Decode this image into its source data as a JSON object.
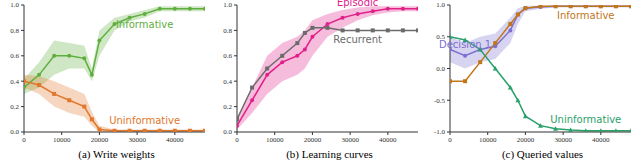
{
  "chart_data": [
    {
      "type": "line",
      "title": "(a) Write weights",
      "grid": false,
      "x": [
        0,
        4000,
        8000,
        12000,
        16000,
        18000,
        20000,
        24000,
        28000,
        32000,
        36000,
        40000,
        44000,
        48000
      ],
      "xlim": [
        0,
        48000
      ],
      "xticks": [
        0,
        10000,
        20000,
        30000,
        40000
      ],
      "ylim": [
        0,
        1
      ],
      "yticks": [
        {
          "value": 0,
          "label": "0.0"
        },
        0.2,
        0.4,
        0.6,
        0.8,
        {
          "value": 1,
          "label": "1.0"
        }
      ],
      "series": [
        {
          "name": "Informative",
          "color": "#5fae3e",
          "marker": "circle",
          "values": [
            0.35,
            0.45,
            0.6,
            0.6,
            0.58,
            0.45,
            0.72,
            0.85,
            0.9,
            0.93,
            0.97,
            0.97,
            0.97,
            0.97
          ],
          "lower": [
            0.3,
            0.35,
            0.45,
            0.5,
            0.5,
            0.4,
            0.6,
            0.8,
            0.87,
            0.9,
            0.95,
            0.95,
            0.95,
            0.95
          ],
          "upper": [
            0.42,
            0.55,
            0.72,
            0.7,
            0.68,
            0.5,
            0.8,
            0.9,
            0.93,
            0.96,
            0.99,
            0.99,
            0.99,
            0.99
          ]
        },
        {
          "name": "Uninformative",
          "color": "#e0772c",
          "marker": "square",
          "values": [
            0.4,
            0.37,
            0.3,
            0.25,
            0.2,
            0.1,
            0.02,
            0.01,
            0.01,
            0.01,
            0.01,
            0.01,
            0.01,
            0.01
          ],
          "lower": [
            0.35,
            0.3,
            0.2,
            0.15,
            0.12,
            0.05,
            0.0,
            0.0,
            0.0,
            0.0,
            0.0,
            0.0,
            0.0,
            0.0
          ],
          "upper": [
            0.45,
            0.44,
            0.4,
            0.35,
            0.3,
            0.16,
            0.05,
            0.02,
            0.02,
            0.02,
            0.02,
            0.02,
            0.02,
            0.02
          ]
        }
      ]
    },
    {
      "type": "line",
      "title": "(b) Learning curves",
      "grid": false,
      "x": [
        0,
        4000,
        8000,
        12000,
        16000,
        18000,
        20000,
        24000,
        28000,
        32000,
        36000,
        40000,
        44000,
        48000
      ],
      "xlim": [
        0,
        48000
      ],
      "xticks": [
        0,
        10000,
        20000,
        30000,
        40000
      ],
      "ylim": [
        0,
        1
      ],
      "yticks": [
        {
          "value": 0,
          "label": "0.0"
        },
        0.2,
        0.4,
        0.6,
        0.8,
        {
          "value": 1,
          "label": "1.0"
        }
      ],
      "series": [
        {
          "name": "Episodic",
          "color": "#e0218a",
          "marker": "circle",
          "values": [
            0.05,
            0.25,
            0.45,
            0.55,
            0.6,
            0.65,
            0.75,
            0.85,
            0.9,
            0.93,
            0.95,
            0.97,
            0.97,
            0.97
          ],
          "lower": [
            0.02,
            0.15,
            0.3,
            0.4,
            0.45,
            0.5,
            0.6,
            0.75,
            0.82,
            0.88,
            0.92,
            0.94,
            0.95,
            0.95
          ],
          "upper": [
            0.1,
            0.35,
            0.6,
            0.7,
            0.75,
            0.8,
            0.88,
            0.93,
            0.96,
            0.98,
            0.99,
            0.99,
            0.99,
            0.99
          ]
        },
        {
          "name": "Recurrent",
          "color": "#6b6b6b",
          "marker": "square",
          "values": [
            0.1,
            0.35,
            0.5,
            0.6,
            0.7,
            0.78,
            0.82,
            0.82,
            0.8,
            0.8,
            0.8,
            0.8,
            0.8,
            0.8
          ]
        }
      ]
    },
    {
      "type": "line",
      "title": "(c) Queried values",
      "grid": false,
      "x": [
        0,
        4000,
        8000,
        12000,
        16000,
        18000,
        20000,
        24000,
        28000,
        32000,
        36000,
        40000,
        44000,
        48000
      ],
      "xlim": [
        0,
        48000
      ],
      "xticks": [
        0,
        10000,
        20000,
        30000,
        40000
      ],
      "ylim": [
        -1,
        1
      ],
      "yticks": [
        {
          "value": -1,
          "label": "-1.0"
        },
        -0.5,
        {
          "value": 0,
          "label": "0.0"
        },
        0.5,
        {
          "value": 1,
          "label": "1.0"
        }
      ],
      "series": [
        {
          "name": "Decision 1",
          "color": "#7b6fd0",
          "marker": "circle",
          "values": [
            0.3,
            0.2,
            0.3,
            0.35,
            0.6,
            0.85,
            0.95,
            0.97,
            0.98,
            0.98,
            0.98,
            0.98,
            0.98,
            0.98
          ],
          "lower": [
            0.1,
            0.0,
            0.1,
            0.15,
            0.4,
            0.7,
            0.9,
            0.94,
            0.96,
            0.96,
            0.96,
            0.96,
            0.96,
            0.96
          ],
          "upper": [
            0.5,
            0.4,
            0.5,
            0.55,
            0.8,
            0.95,
            0.99,
            0.99,
            0.99,
            0.99,
            0.99,
            0.99,
            0.99,
            0.99
          ]
        },
        {
          "name": "Informative",
          "color": "#c0761a",
          "marker": "square",
          "values": [
            -0.2,
            -0.2,
            0.1,
            0.4,
            0.7,
            0.85,
            0.95,
            0.98,
            0.98,
            0.98,
            0.98,
            0.98,
            0.98,
            0.98
          ]
        },
        {
          "name": "Uninformative",
          "color": "#2aa06a",
          "marker": "triangle",
          "values": [
            0.5,
            0.45,
            0.3,
            0.0,
            -0.3,
            -0.5,
            -0.75,
            -0.9,
            -0.95,
            -0.97,
            -0.98,
            -0.98,
            -0.98,
            -0.98
          ]
        }
      ]
    }
  ]
}
